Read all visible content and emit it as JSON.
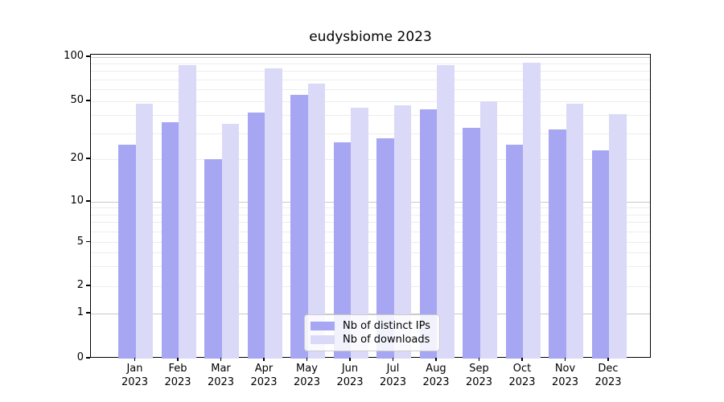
{
  "chart_data": {
    "type": "bar",
    "title": "eudysbiome 2023",
    "categories": [
      "Jan",
      "Feb",
      "Mar",
      "Apr",
      "May",
      "Jun",
      "Jul",
      "Aug",
      "Sep",
      "Oct",
      "Nov",
      "Dec"
    ],
    "category_year": "2023",
    "series": [
      {
        "name": "Nb of distinct IPs",
        "color": "#a6a6f2",
        "values": [
          25,
          36,
          20,
          42,
          55,
          26,
          28,
          44,
          33,
          25,
          32,
          23
        ]
      },
      {
        "name": "Nb of downloads",
        "color": "#dadaf8",
        "values": [
          48,
          88,
          35,
          84,
          66,
          45,
          47,
          88,
          50,
          91,
          48,
          41
        ]
      }
    ],
    "yscale": "log",
    "yticks": [
      0,
      1,
      2,
      5,
      10,
      20,
      50,
      100
    ],
    "ylim": [
      0,
      104
    ],
    "grid": true,
    "legend_position": "bottom-center",
    "colors": {
      "major_grid": "#c8c8c8",
      "minor_grid": "#ededed",
      "axis": "#000000",
      "legend_border": "#cccccc"
    }
  }
}
